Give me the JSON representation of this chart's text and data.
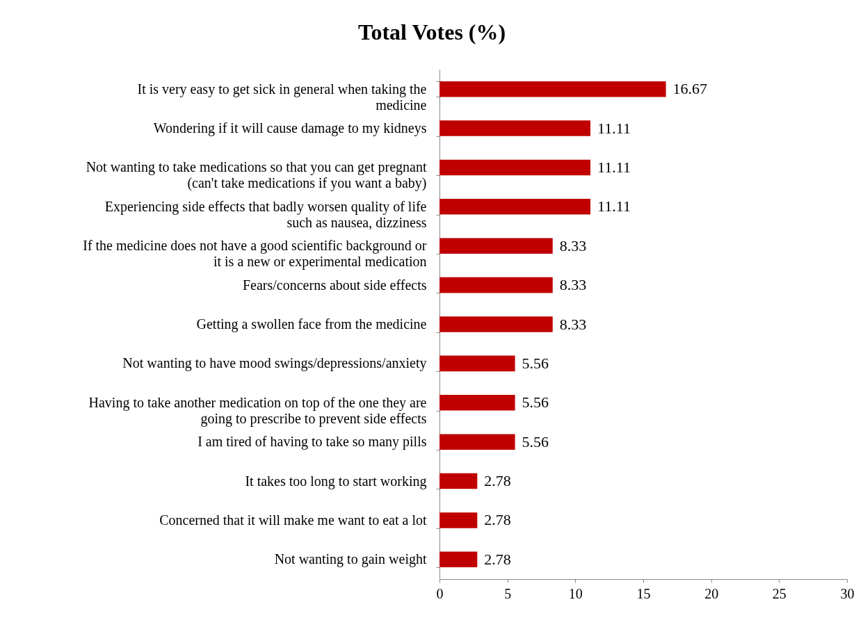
{
  "chart_data": {
    "type": "bar",
    "orientation": "horizontal",
    "title": "Total Votes (%)",
    "categories": [
      "It is very easy to get sick in general when taking the medicine",
      "Wondering if it will cause damage to my kidneys",
      "Not wanting to take medications so that you can get pregnant (can't take medications if you want a baby)",
      "Experiencing side effects that badly worsen quality of life such as nausea, dizziness",
      "If the medicine does not have a good scientific background or it is a new or experimental medication",
      "Fears/concerns about side effects",
      "Getting a swollen  face from the medicine",
      "Not wanting to have mood swings/depressions/anxiety",
      "Having to take another medication on top of the one they are going to prescribe to prevent side effects",
      "I am tired of having to take so many pills",
      "It takes too long to start working",
      "Concerned that it will make me want to eat a lot",
      "Not wanting to gain weight"
    ],
    "values": [
      16.67,
      11.11,
      11.11,
      11.11,
      8.33,
      8.33,
      8.33,
      5.56,
      5.56,
      5.56,
      2.78,
      2.78,
      2.78
    ],
    "color": "#c00000",
    "xlim": [
      0,
      30
    ],
    "xticks": [
      0,
      5,
      10,
      15,
      20,
      25,
      30
    ],
    "grid": false,
    "data_labels": true
  }
}
